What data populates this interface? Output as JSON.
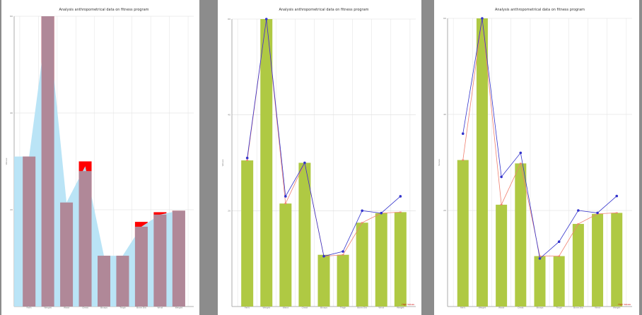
{
  "chart_data": [
    {
      "type": "bar",
      "title": "Analysis anthropometrical data on fitness program",
      "ylabel": "Values",
      "categories": [
        "Fat%",
        "Weight",
        "Waist",
        "Chest",
        "Biceps",
        "Thigh",
        "Bone Dia",
        "Wrist",
        "Weight"
      ],
      "ylim": [
        0,
        60
      ],
      "yticks": [
        20,
        40,
        60
      ],
      "series": [
        {
          "kind": "bar",
          "color": "#ff0000",
          "values": [
            31,
            60,
            21.5,
            30,
            10.5,
            10.5,
            17.5,
            19.5,
            19.8
          ]
        },
        {
          "kind": "area",
          "color": "#b6e3f5",
          "values": [
            31,
            60,
            21.5,
            29,
            10.5,
            10.5,
            16.5,
            19,
            19.8
          ]
        },
        {
          "kind": "bar",
          "color": "#b08898",
          "values": [
            31,
            60,
            21.5,
            28,
            10.5,
            10.5,
            16.5,
            19,
            19.8
          ]
        }
      ],
      "note": ""
    },
    {
      "type": "bar",
      "title": "Analysis anthropometrical data on fitness program",
      "ylabel": "Values",
      "categories": [
        "Fat%",
        "Weight",
        "Waist",
        "Chest",
        "Biceps",
        "Thigh",
        "Bone Dia",
        "Wrist",
        "Weight"
      ],
      "ylim": [
        0,
        60
      ],
      "yticks": [
        20,
        40,
        60
      ],
      "series": [
        {
          "kind": "bar",
          "color": "#afc943",
          "values": [
            30.5,
            60,
            21.5,
            30,
            10.8,
            10.8,
            17.5,
            19.5,
            19.7
          ]
        },
        {
          "kind": "line",
          "color": "#f08070",
          "values": [
            30.5,
            60,
            21.5,
            30,
            10.5,
            10.8,
            17.5,
            19.5,
            19.7
          ]
        },
        {
          "kind": "line",
          "color": "#3333cc",
          "values": [
            31,
            60,
            23,
            30,
            10.5,
            11.5,
            20,
            19.5,
            23
          ]
        }
      ],
      "note": "High Values"
    },
    {
      "type": "bar",
      "title": "Analysis anthropometrical data on fitness program",
      "ylabel": "Values",
      "categories": [
        "Fat%",
        "Weight",
        "Waist",
        "Chest",
        "Biceps",
        "Thigh",
        "Bone Dia",
        "Wrist",
        "Weight"
      ],
      "ylim": [
        0,
        60
      ],
      "yticks": [
        20,
        40,
        60
      ],
      "series": [
        {
          "kind": "bar",
          "color": "#afc943",
          "values": [
            30.5,
            60,
            21.2,
            29.8,
            10.5,
            10.5,
            17.2,
            19.3,
            19.5
          ]
        },
        {
          "kind": "line",
          "color": "#f08070",
          "values": [
            30.5,
            60,
            21.2,
            29.8,
            10.5,
            10.5,
            17.2,
            19.3,
            19.5
          ]
        },
        {
          "kind": "line",
          "color": "#3333cc",
          "values": [
            36,
            60,
            27,
            32,
            10,
            13.5,
            20,
            19.5,
            23
          ]
        }
      ],
      "note": "High Values"
    }
  ]
}
